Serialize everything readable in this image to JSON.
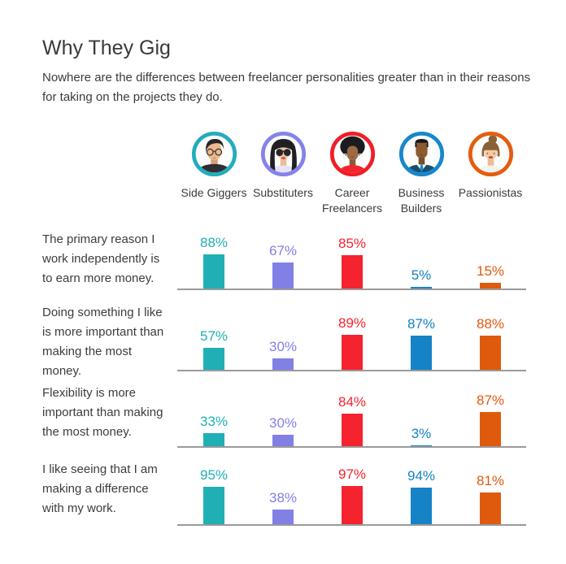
{
  "header": {
    "title": "Why They Gig",
    "subtitle": "Nowhere are the differences between freelancer personalities greater than in their reasons for taking on the projects they do."
  },
  "personas": [
    {
      "name": "Side Giggers",
      "ring_color": "#23ACBD"
    },
    {
      "name": "Substituters",
      "ring_color": "#8583EA"
    },
    {
      "name": "Career Freelancers",
      "ring_color": "#EE1F27"
    },
    {
      "name": "Business Builders",
      "ring_color": "#1787CB"
    },
    {
      "name": "Passionistas",
      "ring_color": "#E55C0F"
    }
  ],
  "chart_data": {
    "type": "bar",
    "title": "Why They Gig",
    "unit": "%",
    "categories": [
      "Side Giggers",
      "Substituters",
      "Career Freelancers",
      "Business Builders",
      "Passionistas"
    ],
    "series_colors": [
      "#1FAFB4",
      "#8280E4",
      "#F5232E",
      "#1583C5",
      "#E05A0D"
    ],
    "ylim": [
      0,
      100
    ],
    "grid": false,
    "legend_position": "top-avatars",
    "rows": [
      {
        "statement": "The primary reason I work independently is to earn more money.",
        "values": [
          88,
          67,
          85,
          5,
          15
        ]
      },
      {
        "statement": "Doing something I like is more important than making the most money.",
        "values": [
          57,
          30,
          89,
          87,
          88
        ]
      },
      {
        "statement": "Flexibility is more important than making the most money.",
        "values": [
          33,
          30,
          84,
          3,
          87
        ]
      },
      {
        "statement": "I like seeing that I am making a difference with my work.",
        "values": [
          95,
          38,
          97,
          94,
          81
        ]
      }
    ]
  }
}
